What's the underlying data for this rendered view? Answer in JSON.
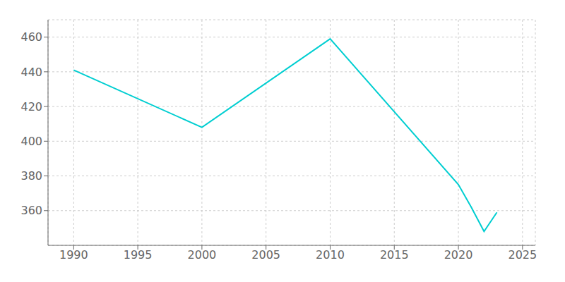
{
  "chart_data": {
    "type": "line",
    "x": [
      1990,
      2000,
      2010,
      2020,
      2021,
      2022,
      2023
    ],
    "values": [
      441,
      408,
      459,
      375,
      362,
      348,
      359
    ],
    "color": "#00CED1",
    "xlim": [
      1988,
      2026
    ],
    "ylim": [
      340,
      470
    ],
    "xticks": [
      1990,
      1995,
      2000,
      2005,
      2010,
      2015,
      2020,
      2025
    ],
    "yticks": [
      360,
      380,
      400,
      420,
      440,
      460
    ],
    "grid": true
  }
}
